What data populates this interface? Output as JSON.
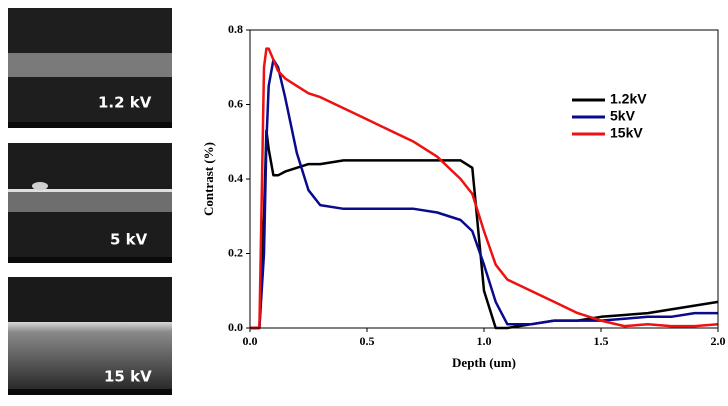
{
  "panels": [
    {
      "label": "1.2 kV"
    },
    {
      "label": "5 kV"
    },
    {
      "label": "15 kV"
    }
  ],
  "chart_data": {
    "type": "line",
    "x_label": "Depth (um)",
    "y_label": "Contrast (%)",
    "x": [
      0,
      0.04,
      0.06,
      0.07,
      0.08,
      0.1,
      0.12,
      0.15,
      0.2,
      0.25,
      0.3,
      0.4,
      0.5,
      0.6,
      0.7,
      0.8,
      0.9,
      0.95,
      1.0,
      1.05,
      1.1,
      1.2,
      1.3,
      1.4,
      1.5,
      1.6,
      1.7,
      1.8,
      1.9,
      2.0
    ],
    "series": [
      {
        "name": "1.2kV",
        "color": "#000000",
        "values": [
          0,
          0,
          0.3,
          0.53,
          0.48,
          0.41,
          0.41,
          0.42,
          0.43,
          0.44,
          0.44,
          0.45,
          0.45,
          0.45,
          0.45,
          0.45,
          0.45,
          0.43,
          0.1,
          0.0,
          0.0,
          0.01,
          0.02,
          0.02,
          0.03,
          0.035,
          0.04,
          0.05,
          0.06,
          0.07
        ]
      },
      {
        "name": "5kV",
        "color": "#0a0a8c",
        "values": [
          0,
          0,
          0.2,
          0.5,
          0.65,
          0.72,
          0.7,
          0.62,
          0.47,
          0.37,
          0.33,
          0.32,
          0.32,
          0.32,
          0.32,
          0.31,
          0.29,
          0.26,
          0.17,
          0.07,
          0.01,
          0.01,
          0.02,
          0.02,
          0.02,
          0.025,
          0.03,
          0.03,
          0.04,
          0.04
        ]
      },
      {
        "name": "15kV",
        "color": "#ee1111",
        "values": [
          0,
          0,
          0.7,
          0.75,
          0.75,
          0.72,
          0.69,
          0.67,
          0.65,
          0.63,
          0.62,
          0.59,
          0.56,
          0.53,
          0.5,
          0.46,
          0.4,
          0.36,
          0.26,
          0.17,
          0.13,
          0.1,
          0.07,
          0.04,
          0.02,
          0.005,
          0.01,
          0.005,
          0.005,
          0.01
        ]
      }
    ],
    "xlim": [
      0,
      2
    ],
    "ylim": [
      0,
      0.8
    ],
    "xticks": [
      {
        "value": 0,
        "label": "0.0"
      },
      0.5,
      {
        "value": 1,
        "label": "1.0"
      },
      1.5,
      {
        "value": 2,
        "label": "2.0"
      }
    ],
    "yticks": [
      {
        "value": 0,
        "label": "0.0"
      },
      0.2,
      0.4,
      0.6,
      0.8
    ],
    "legend": "upper-right"
  }
}
